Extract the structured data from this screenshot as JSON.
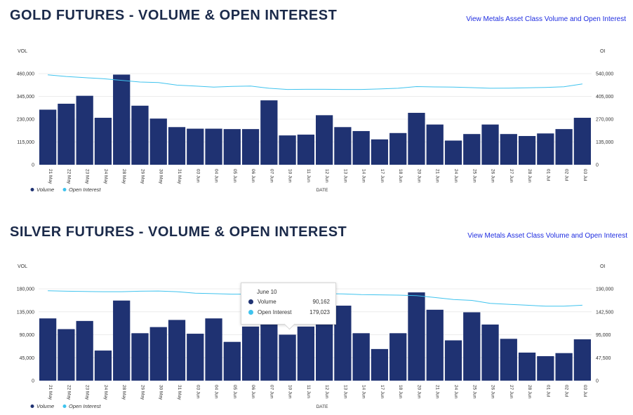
{
  "gold": {
    "title": "GOLD FUTURES - VOLUME & OPEN INTEREST",
    "link": "View Metals Asset Class Volume and Open Interest"
  },
  "silver": {
    "title": "SILVER FUTURES - VOLUME & OPEN INTEREST",
    "link": "View Metals Asset Class Volume and Open Interest"
  },
  "tooltip": {
    "date": "June 10",
    "volume_label": "Volume",
    "volume_value": "90,162",
    "oi_label": "Open Interest",
    "oi_value": "179,023"
  },
  "colors": {
    "bar": "#1f3272",
    "line": "#3fc3ee",
    "title": "#1b2a4a",
    "link": "#1f2de0"
  },
  "chart_data": [
    {
      "type": "bar",
      "title": "GOLD FUTURES - VOLUME & OPEN INTEREST",
      "xlabel": "DATE",
      "ylabel_left": "VOL",
      "ylabel_right": "OI",
      "categories": [
        "21 May",
        "22 May",
        "23 May",
        "24 May",
        "28 May",
        "29 May",
        "30 May",
        "31 May",
        "03 Jun",
        "04 Jun",
        "05 Jun",
        "06 Jun",
        "07 Jun",
        "10 Jun",
        "11 Jun",
        "12 Jun",
        "13 Jun",
        "14 Jun",
        "17 Jun",
        "18 Jun",
        "20 Jun",
        "21 Jun",
        "24 Jun",
        "25 Jun",
        "26 Jun",
        "27 Jun",
        "28 Jun",
        "01 Jul",
        "02 Jul",
        "03 Jul"
      ],
      "left_ticks": [
        "0",
        "115,000",
        "230,000",
        "345,000",
        "460,000"
      ],
      "right_ticks": [
        "0",
        "135,000",
        "270,000",
        "405,000",
        "540,000"
      ],
      "ylim_left": [
        0,
        460000
      ],
      "ylim_right": [
        0,
        540000
      ],
      "legend": [
        "Volume",
        "Open Interest"
      ],
      "series": [
        {
          "name": "Volume",
          "axis": "left",
          "values": [
            278000,
            308000,
            348000,
            237000,
            455000,
            298000,
            233000,
            190000,
            182000,
            182000,
            180000,
            180000,
            325000,
            148000,
            152000,
            250000,
            190000,
            170000,
            128000,
            160000,
            262000,
            203000,
            122000,
            155000,
            203000,
            155000,
            145000,
            158000,
            180000,
            237000
          ]
        },
        {
          "name": "Open Interest",
          "axis": "right",
          "values": [
            533000,
            523000,
            516000,
            510000,
            500000,
            490000,
            487000,
            472000,
            466000,
            460000,
            464000,
            466000,
            453000,
            446000,
            447000,
            447000,
            446000,
            446000,
            449000,
            453000,
            463000,
            461000,
            460000,
            457000,
            453000,
            454000,
            456000,
            458000,
            462000,
            479000
          ]
        }
      ]
    },
    {
      "type": "bar",
      "title": "SILVER FUTURES - VOLUME & OPEN INTEREST",
      "xlabel": "DATE",
      "ylabel_left": "VOL",
      "ylabel_right": "OI",
      "categories": [
        "21 May",
        "22 May",
        "23 May",
        "24 May",
        "28 May",
        "29 May",
        "30 May",
        "31 May",
        "03 Jun",
        "04 Jun",
        "05 Jun",
        "06 Jun",
        "07 Jun",
        "10 Jun",
        "11 Jun",
        "12 Jun",
        "13 Jun",
        "14 Jun",
        "17 Jun",
        "18 Jun",
        "20 Jun",
        "21 Jun",
        "24 Jun",
        "25 Jun",
        "26 Jun",
        "27 Jun",
        "28 Jun",
        "01 Jul",
        "02 Jul",
        "03 Jul"
      ],
      "left_ticks": [
        "0",
        "45,000",
        "90,000",
        "135,000",
        "180,000"
      ],
      "right_ticks": [
        "0",
        "47,500",
        "95,000",
        "142,500",
        "190,000"
      ],
      "ylim_left": [
        0,
        180000
      ],
      "ylim_right": [
        0,
        190000
      ],
      "legend": [
        "Volume",
        "Open Interest"
      ],
      "series": [
        {
          "name": "Volume",
          "axis": "left",
          "values": [
            122000,
            101000,
            117000,
            59000,
            157000,
            93000,
            105000,
            119000,
            92000,
            122000,
            76000,
            106000,
            120000,
            90162,
            106000,
            120000,
            147000,
            93000,
            62000,
            93000,
            173000,
            139000,
            79000,
            134000,
            110000,
            82000,
            55000,
            48000,
            54000,
            81000
          ]
        },
        {
          "name": "Open Interest",
          "axis": "right",
          "values": [
            186000,
            185000,
            184500,
            184000,
            184000,
            185000,
            185500,
            184000,
            181000,
            180000,
            179000,
            179000,
            179200,
            179023,
            179500,
            180000,
            179500,
            178000,
            177500,
            177000,
            176000,
            172000,
            168000,
            166000,
            160000,
            158000,
            156000,
            154000,
            154000,
            156000
          ]
        }
      ]
    }
  ]
}
